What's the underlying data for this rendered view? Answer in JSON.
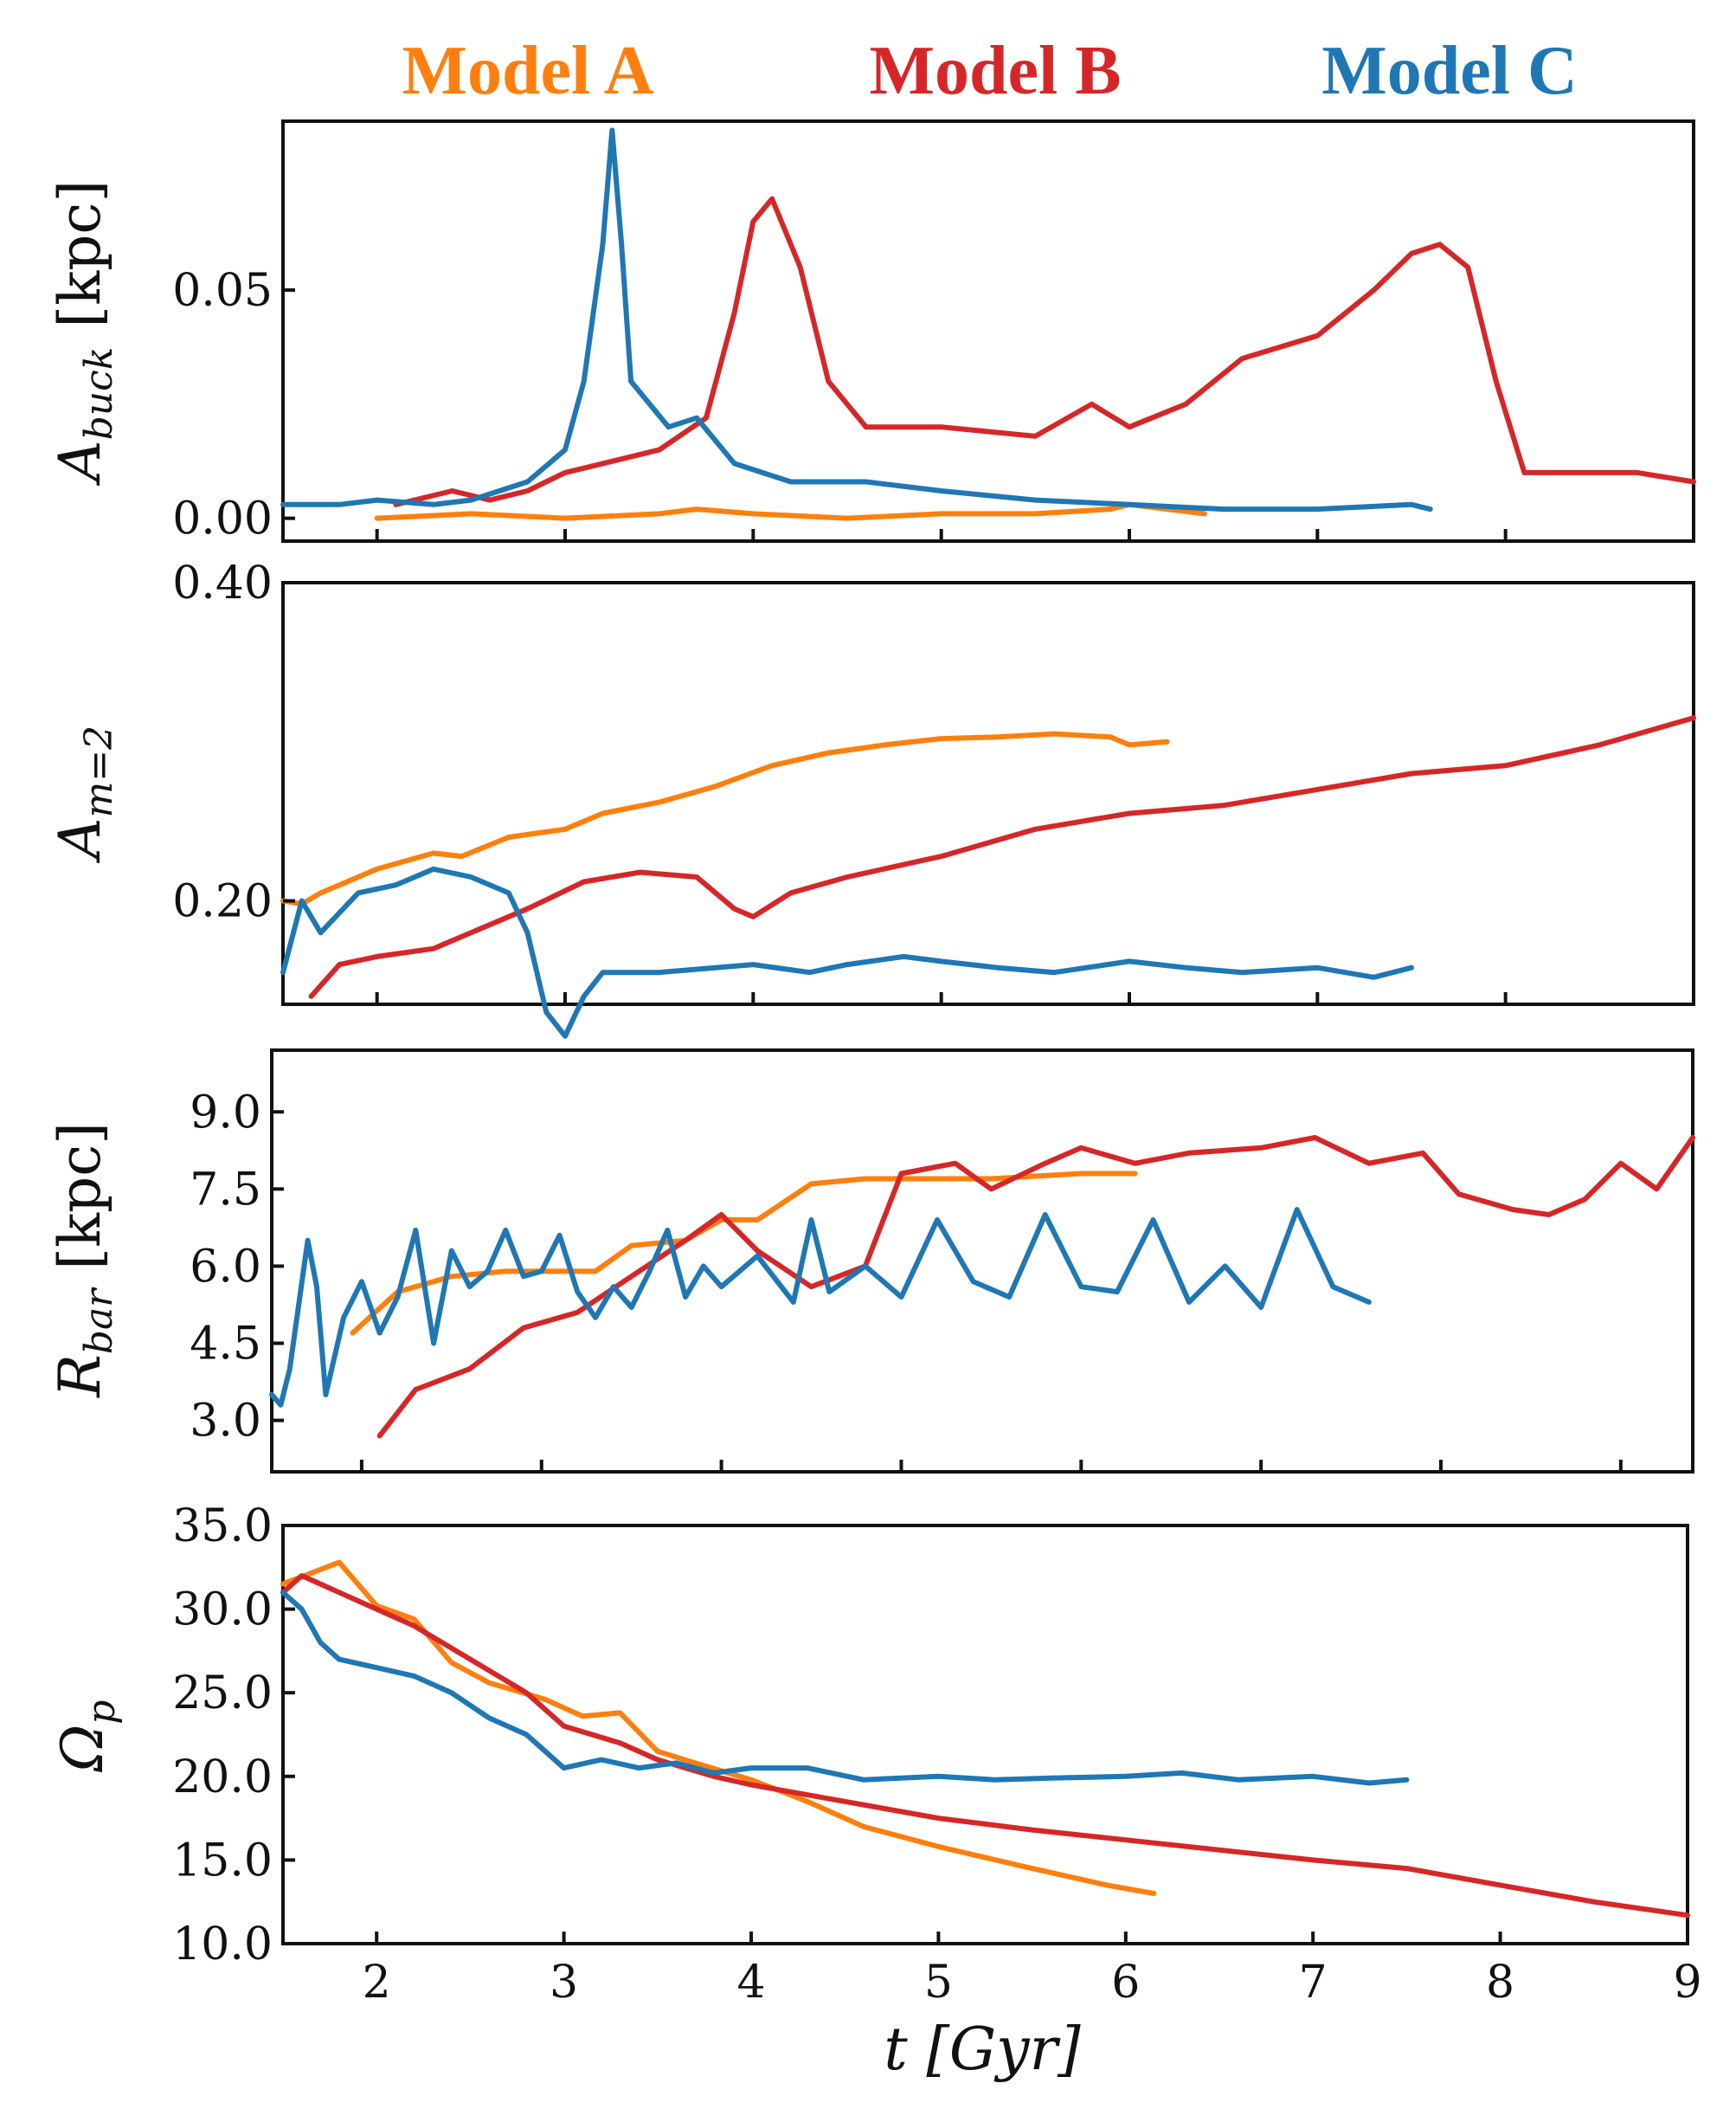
{
  "colors": {
    "model_a": "#ff7f0e",
    "model_b": "#d62728",
    "model_c": "#1f77b4"
  },
  "legend": [
    {
      "key": "model_a",
      "label": "Model A"
    },
    {
      "key": "model_b",
      "label": "Model B"
    },
    {
      "key": "model_c",
      "label": "Model C"
    }
  ],
  "xaxis": {
    "label": "t [Gyr]",
    "ticks": [
      "2",
      "3",
      "4",
      "5",
      "6",
      "7",
      "8",
      "9"
    ]
  },
  "chart_data": [
    {
      "type": "line",
      "id": "abuck",
      "ylabel": "A_buck [kpc]",
      "ylabel_main": "A",
      "ylabel_sub": "buck",
      "ylabel_unit": "[kpc]",
      "xlim": [
        1.5,
        9.0
      ],
      "ylim": [
        -0.005,
        0.087
      ],
      "yticks": [
        0.0,
        0.05
      ],
      "yticklabels": [
        "0.00",
        "0.05"
      ],
      "series": [
        {
          "name": "Model A",
          "key": "model_a",
          "x": [
            2.0,
            2.5,
            3.0,
            3.5,
            3.7,
            4.0,
            4.5,
            5.0,
            5.5,
            5.9,
            6.0,
            6.4
          ],
          "y": [
            0.0,
            0.001,
            0.0,
            0.001,
            0.002,
            0.001,
            0.0,
            0.001,
            0.001,
            0.002,
            0.003,
            0.001
          ]
        },
        {
          "name": "Model B",
          "key": "model_b",
          "x": [
            2.1,
            2.4,
            2.6,
            2.8,
            3.0,
            3.2,
            3.5,
            3.75,
            3.9,
            4.0,
            4.1,
            4.25,
            4.4,
            4.6,
            5.0,
            5.5,
            5.8,
            6.0,
            6.3,
            6.6,
            7.0,
            7.3,
            7.5,
            7.65,
            7.8,
            7.95,
            8.1,
            8.4,
            8.7,
            9.0
          ],
          "y": [
            0.003,
            0.006,
            0.004,
            0.006,
            0.01,
            0.012,
            0.015,
            0.022,
            0.045,
            0.065,
            0.07,
            0.055,
            0.03,
            0.02,
            0.02,
            0.018,
            0.025,
            0.02,
            0.025,
            0.035,
            0.04,
            0.05,
            0.058,
            0.06,
            0.055,
            0.03,
            0.01,
            0.01,
            0.01,
            0.008
          ]
        },
        {
          "name": "Model C",
          "key": "model_c",
          "x": [
            1.5,
            1.8,
            2.0,
            2.3,
            2.5,
            2.8,
            3.0,
            3.1,
            3.2,
            3.25,
            3.3,
            3.35,
            3.45,
            3.55,
            3.7,
            3.9,
            4.2,
            4.6,
            5.0,
            5.5,
            6.0,
            6.5,
            7.0,
            7.5,
            7.6
          ],
          "y": [
            0.003,
            0.003,
            0.004,
            0.003,
            0.004,
            0.008,
            0.015,
            0.03,
            0.06,
            0.085,
            0.06,
            0.03,
            0.025,
            0.02,
            0.022,
            0.012,
            0.008,
            0.008,
            0.006,
            0.004,
            0.003,
            0.002,
            0.002,
            0.003,
            0.002
          ]
        }
      ]
    },
    {
      "type": "line",
      "id": "am2",
      "ylabel": "A_m=2",
      "ylabel_main": "A",
      "ylabel_sub": "m=2",
      "ylabel_unit": "",
      "xlim": [
        1.5,
        9.0
      ],
      "ylim": [
        0.135,
        0.4
      ],
      "yticks": [
        0.2,
        0.4
      ],
      "yticklabels": [
        "0.20",
        "0.40"
      ],
      "series": [
        {
          "name": "Model A",
          "key": "model_a",
          "x": [
            1.5,
            1.6,
            1.7,
            2.0,
            2.3,
            2.45,
            2.7,
            3.0,
            3.2,
            3.5,
            3.8,
            4.1,
            4.4,
            4.7,
            5.0,
            5.3,
            5.6,
            5.9,
            6.0,
            6.2
          ],
          "y": [
            0.2,
            0.198,
            0.205,
            0.22,
            0.23,
            0.228,
            0.24,
            0.245,
            0.255,
            0.262,
            0.272,
            0.285,
            0.293,
            0.298,
            0.302,
            0.303,
            0.305,
            0.303,
            0.298,
            0.3
          ]
        },
        {
          "name": "Model B",
          "key": "model_b",
          "x": [
            1.65,
            1.8,
            2.0,
            2.3,
            2.5,
            2.8,
            3.1,
            3.4,
            3.7,
            3.9,
            4.0,
            4.2,
            4.5,
            5.0,
            5.5,
            6.0,
            6.5,
            7.0,
            7.5,
            8.0,
            8.5,
            9.0
          ],
          "y": [
            0.14,
            0.16,
            0.165,
            0.17,
            0.18,
            0.195,
            0.212,
            0.218,
            0.215,
            0.195,
            0.19,
            0.205,
            0.215,
            0.228,
            0.245,
            0.255,
            0.26,
            0.27,
            0.28,
            0.285,
            0.298,
            0.315
          ]
        },
        {
          "name": "Model C",
          "key": "model_c",
          "x": [
            1.5,
            1.6,
            1.7,
            1.9,
            2.1,
            2.3,
            2.5,
            2.7,
            2.8,
            2.9,
            3.0,
            3.1,
            3.2,
            3.5,
            4.0,
            4.3,
            4.5,
            4.8,
            5.0,
            5.3,
            5.6,
            6.0,
            6.3,
            6.6,
            7.0,
            7.3,
            7.5
          ],
          "y": [
            0.155,
            0.2,
            0.18,
            0.205,
            0.21,
            0.22,
            0.215,
            0.205,
            0.18,
            0.13,
            0.115,
            0.14,
            0.155,
            0.155,
            0.16,
            0.155,
            0.16,
            0.165,
            0.162,
            0.158,
            0.155,
            0.162,
            0.158,
            0.155,
            0.158,
            0.152,
            0.158
          ]
        }
      ]
    },
    {
      "type": "line",
      "id": "rbar",
      "ylabel": "R_bar [kpc]",
      "ylabel_main": "R",
      "ylabel_sub": "bar",
      "ylabel_unit": "[kpc]",
      "xlim": [
        1.5,
        9.4
      ],
      "ylim": [
        2.0,
        10.2
      ],
      "yticks": [
        3.0,
        4.5,
        6.0,
        7.5,
        9.0
      ],
      "yticklabels": [
        "3.0",
        "4.5",
        "6.0",
        "7.5",
        "9.0"
      ],
      "series": [
        {
          "name": "Model A",
          "key": "model_a",
          "x": [
            1.95,
            2.2,
            2.5,
            2.8,
            3.0,
            3.3,
            3.5,
            3.8,
            4.0,
            4.2,
            4.5,
            4.8,
            5.0,
            5.5,
            6.0,
            6.3
          ],
          "y": [
            4.7,
            5.5,
            5.8,
            5.9,
            5.9,
            5.9,
            6.4,
            6.5,
            6.9,
            6.9,
            7.6,
            7.7,
            7.7,
            7.7,
            7.8,
            7.8
          ]
        },
        {
          "name": "Model B",
          "key": "model_b",
          "x": [
            2.1,
            2.3,
            2.6,
            2.9,
            3.2,
            3.5,
            3.8,
            4.0,
            4.2,
            4.5,
            4.8,
            5.0,
            5.3,
            5.5,
            5.8,
            6.0,
            6.3,
            6.6,
            7.0,
            7.3,
            7.6,
            7.9,
            8.1,
            8.4,
            8.6,
            8.8,
            9.0,
            9.2,
            9.4
          ],
          "y": [
            2.7,
            3.6,
            4.0,
            4.8,
            5.1,
            5.8,
            6.5,
            7.0,
            6.3,
            5.6,
            6.0,
            7.8,
            8.0,
            7.5,
            8.0,
            8.3,
            8.0,
            8.2,
            8.3,
            8.5,
            8.0,
            8.2,
            7.4,
            7.1,
            7.0,
            7.3,
            8.0,
            7.5,
            8.5
          ]
        },
        {
          "name": "Model C",
          "key": "model_c",
          "x": [
            1.5,
            1.55,
            1.6,
            1.7,
            1.75,
            1.8,
            1.9,
            2.0,
            2.1,
            2.2,
            2.3,
            2.4,
            2.5,
            2.6,
            2.7,
            2.8,
            2.9,
            3.0,
            3.1,
            3.2,
            3.3,
            3.4,
            3.5,
            3.6,
            3.7,
            3.8,
            3.9,
            4.0,
            4.2,
            4.4,
            4.5,
            4.6,
            4.8,
            5.0,
            5.2,
            5.4,
            5.6,
            5.8,
            6.0,
            6.2,
            6.4,
            6.6,
            6.8,
            7.0,
            7.2,
            7.4,
            7.6
          ],
          "y": [
            3.5,
            3.3,
            4.0,
            6.5,
            5.6,
            3.5,
            5.0,
            5.7,
            4.7,
            5.4,
            6.7,
            4.5,
            6.3,
            5.6,
            5.9,
            6.7,
            5.8,
            5.9,
            6.6,
            5.5,
            5.0,
            5.6,
            5.2,
            5.9,
            6.7,
            5.4,
            6.0,
            5.6,
            6.2,
            5.3,
            6.9,
            5.5,
            6.0,
            5.4,
            6.9,
            5.7,
            5.4,
            7.0,
            5.6,
            5.5,
            6.9,
            5.3,
            6.0,
            5.2,
            7.1,
            5.6,
            5.3
          ]
        }
      ]
    },
    {
      "type": "line",
      "id": "omega",
      "ylabel": "Ω_p",
      "ylabel_main": "Ω",
      "ylabel_sub": "p",
      "ylabel_unit": "",
      "xlim": [
        1.5,
        9.0
      ],
      "ylim": [
        10.0,
        35.0
      ],
      "yticks": [
        10.0,
        15.0,
        20.0,
        25.0,
        30.0,
        35.0
      ],
      "yticklabels": [
        "10.0",
        "15.0",
        "20.0",
        "25.0",
        "30.0",
        "35.0"
      ],
      "series": [
        {
          "name": "Model A",
          "key": "model_a",
          "x": [
            1.5,
            1.8,
            2.0,
            2.2,
            2.4,
            2.6,
            2.9,
            3.1,
            3.3,
            3.5,
            3.7,
            4.0,
            4.3,
            4.6,
            5.0,
            5.5,
            5.9,
            6.15
          ],
          "y": [
            31.5,
            32.8,
            30.2,
            29.4,
            26.8,
            25.6,
            24.6,
            23.6,
            23.8,
            21.5,
            20.8,
            19.8,
            18.5,
            17.0,
            15.8,
            14.5,
            13.5,
            13.0
          ]
        },
        {
          "name": "Model B",
          "key": "model_b",
          "x": [
            1.5,
            1.6,
            1.7,
            1.8,
            2.0,
            2.2,
            2.5,
            2.8,
            3.0,
            3.3,
            3.5,
            3.8,
            4.0,
            4.5,
            5.0,
            5.5,
            6.0,
            6.5,
            7.0,
            7.5,
            8.0,
            8.5,
            9.0
          ],
          "y": [
            31.0,
            32.0,
            31.5,
            31.0,
            30.0,
            29.0,
            27.0,
            25.0,
            23.0,
            22.0,
            21.0,
            20.0,
            19.5,
            18.5,
            17.5,
            16.8,
            16.2,
            15.6,
            15.0,
            14.5,
            13.5,
            12.5,
            11.7
          ]
        },
        {
          "name": "Model C",
          "key": "model_c",
          "x": [
            1.5,
            1.6,
            1.7,
            1.8,
            2.0,
            2.2,
            2.4,
            2.6,
            2.8,
            3.0,
            3.2,
            3.4,
            3.6,
            3.8,
            4.0,
            4.3,
            4.6,
            5.0,
            5.3,
            5.6,
            6.0,
            6.3,
            6.6,
            7.0,
            7.3,
            7.5
          ],
          "y": [
            31.0,
            30.0,
            28.0,
            27.0,
            26.5,
            26.0,
            25.0,
            23.5,
            22.5,
            20.5,
            21.0,
            20.5,
            20.8,
            20.2,
            20.5,
            20.5,
            19.8,
            20.0,
            19.8,
            19.9,
            20.0,
            20.2,
            19.8,
            20.0,
            19.6,
            19.8
          ]
        }
      ]
    }
  ]
}
